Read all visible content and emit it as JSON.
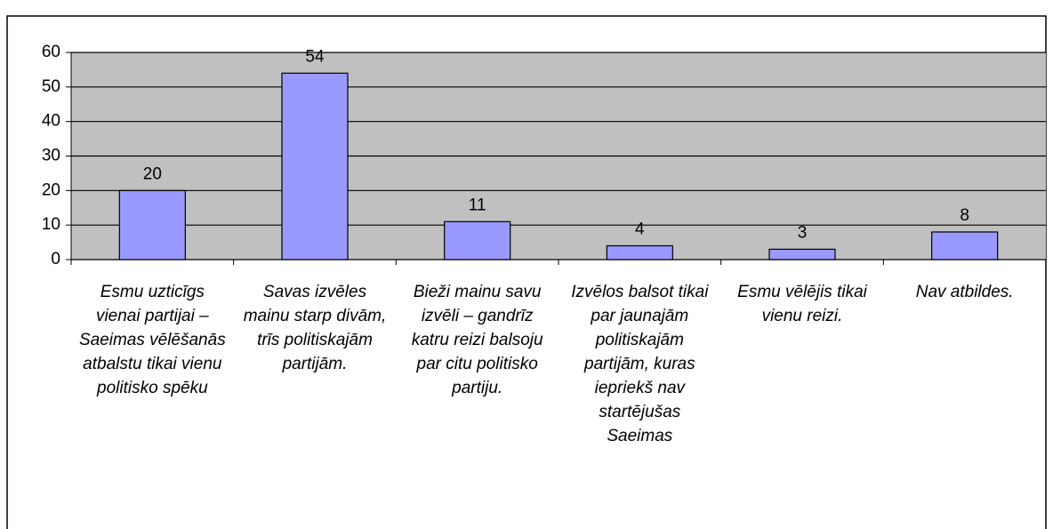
{
  "chart_data": {
    "type": "bar",
    "categories": [
      "Esmu uzticīgs vienai partijai – Saeimas vēlēšanās atbalstu tikai vienu politisko spēku",
      "Savas izvēles mainu starp divām, trīs politiskajām partijām.",
      "Bieži mainu savu izvēli – gandrīz katru reizi balsoju par citu politisko partiju.",
      "Izvēlos balsot tikai par jaunajām politiskajām partijām, kuras iepriekš nav startējušas Saeimas",
      "Esmu vēlējis tikai vienu reizi.",
      "Nav atbildes."
    ],
    "values": [
      20,
      54,
      11,
      4,
      3,
      8
    ],
    "color": "#9999ff",
    "ylim": [
      0,
      60
    ],
    "yticks": [
      0,
      10,
      20,
      30,
      40,
      50,
      60
    ],
    "grid": true
  }
}
